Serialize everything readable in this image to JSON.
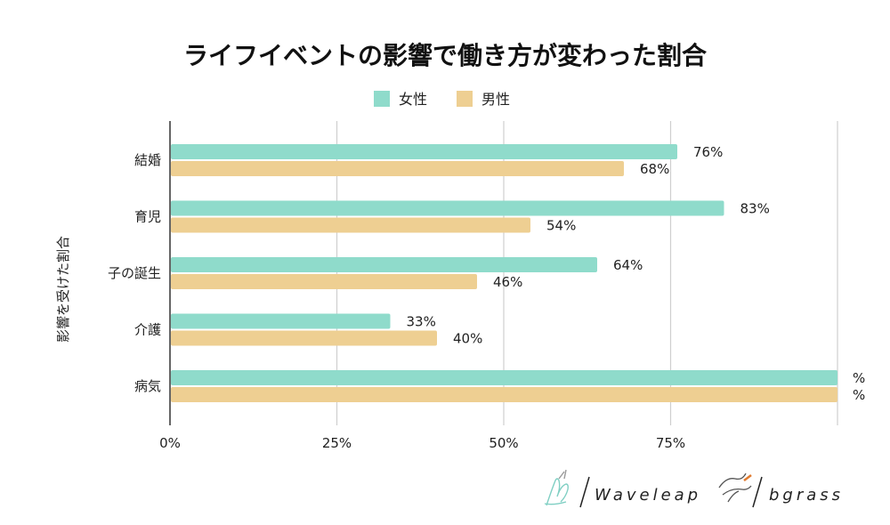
{
  "chart_data": {
    "type": "bar",
    "orientation": "horizontal",
    "title": "ライフイベントの影響で働き方が変わった割合",
    "ylabel": "影響を受けた割合",
    "xlabel": "",
    "categories": [
      "結婚",
      "育児",
      "子の誕生",
      "介護",
      "病気"
    ],
    "series": [
      {
        "name": "女性",
        "color": "#8fdbcb",
        "values": [
          76,
          83,
          64,
          33,
          100
        ],
        "labels": [
          "76%",
          "83%",
          "64%",
          "33%",
          "%"
        ]
      },
      {
        "name": "男性",
        "color": "#eecf92",
        "values": [
          68,
          54,
          46,
          40,
          100
        ],
        "labels": [
          "68%",
          "54%",
          "46%",
          "40%",
          "%"
        ]
      }
    ],
    "xlim": [
      0,
      100
    ],
    "xticks": [
      0,
      25,
      50,
      75,
      100
    ],
    "xtick_labels": [
      "0%",
      "25%",
      "50%",
      "75%",
      ""
    ],
    "grid": true,
    "legend_position": "top"
  },
  "logos": {
    "waveleap": "Waveleap",
    "bgrass": "bgrass"
  }
}
